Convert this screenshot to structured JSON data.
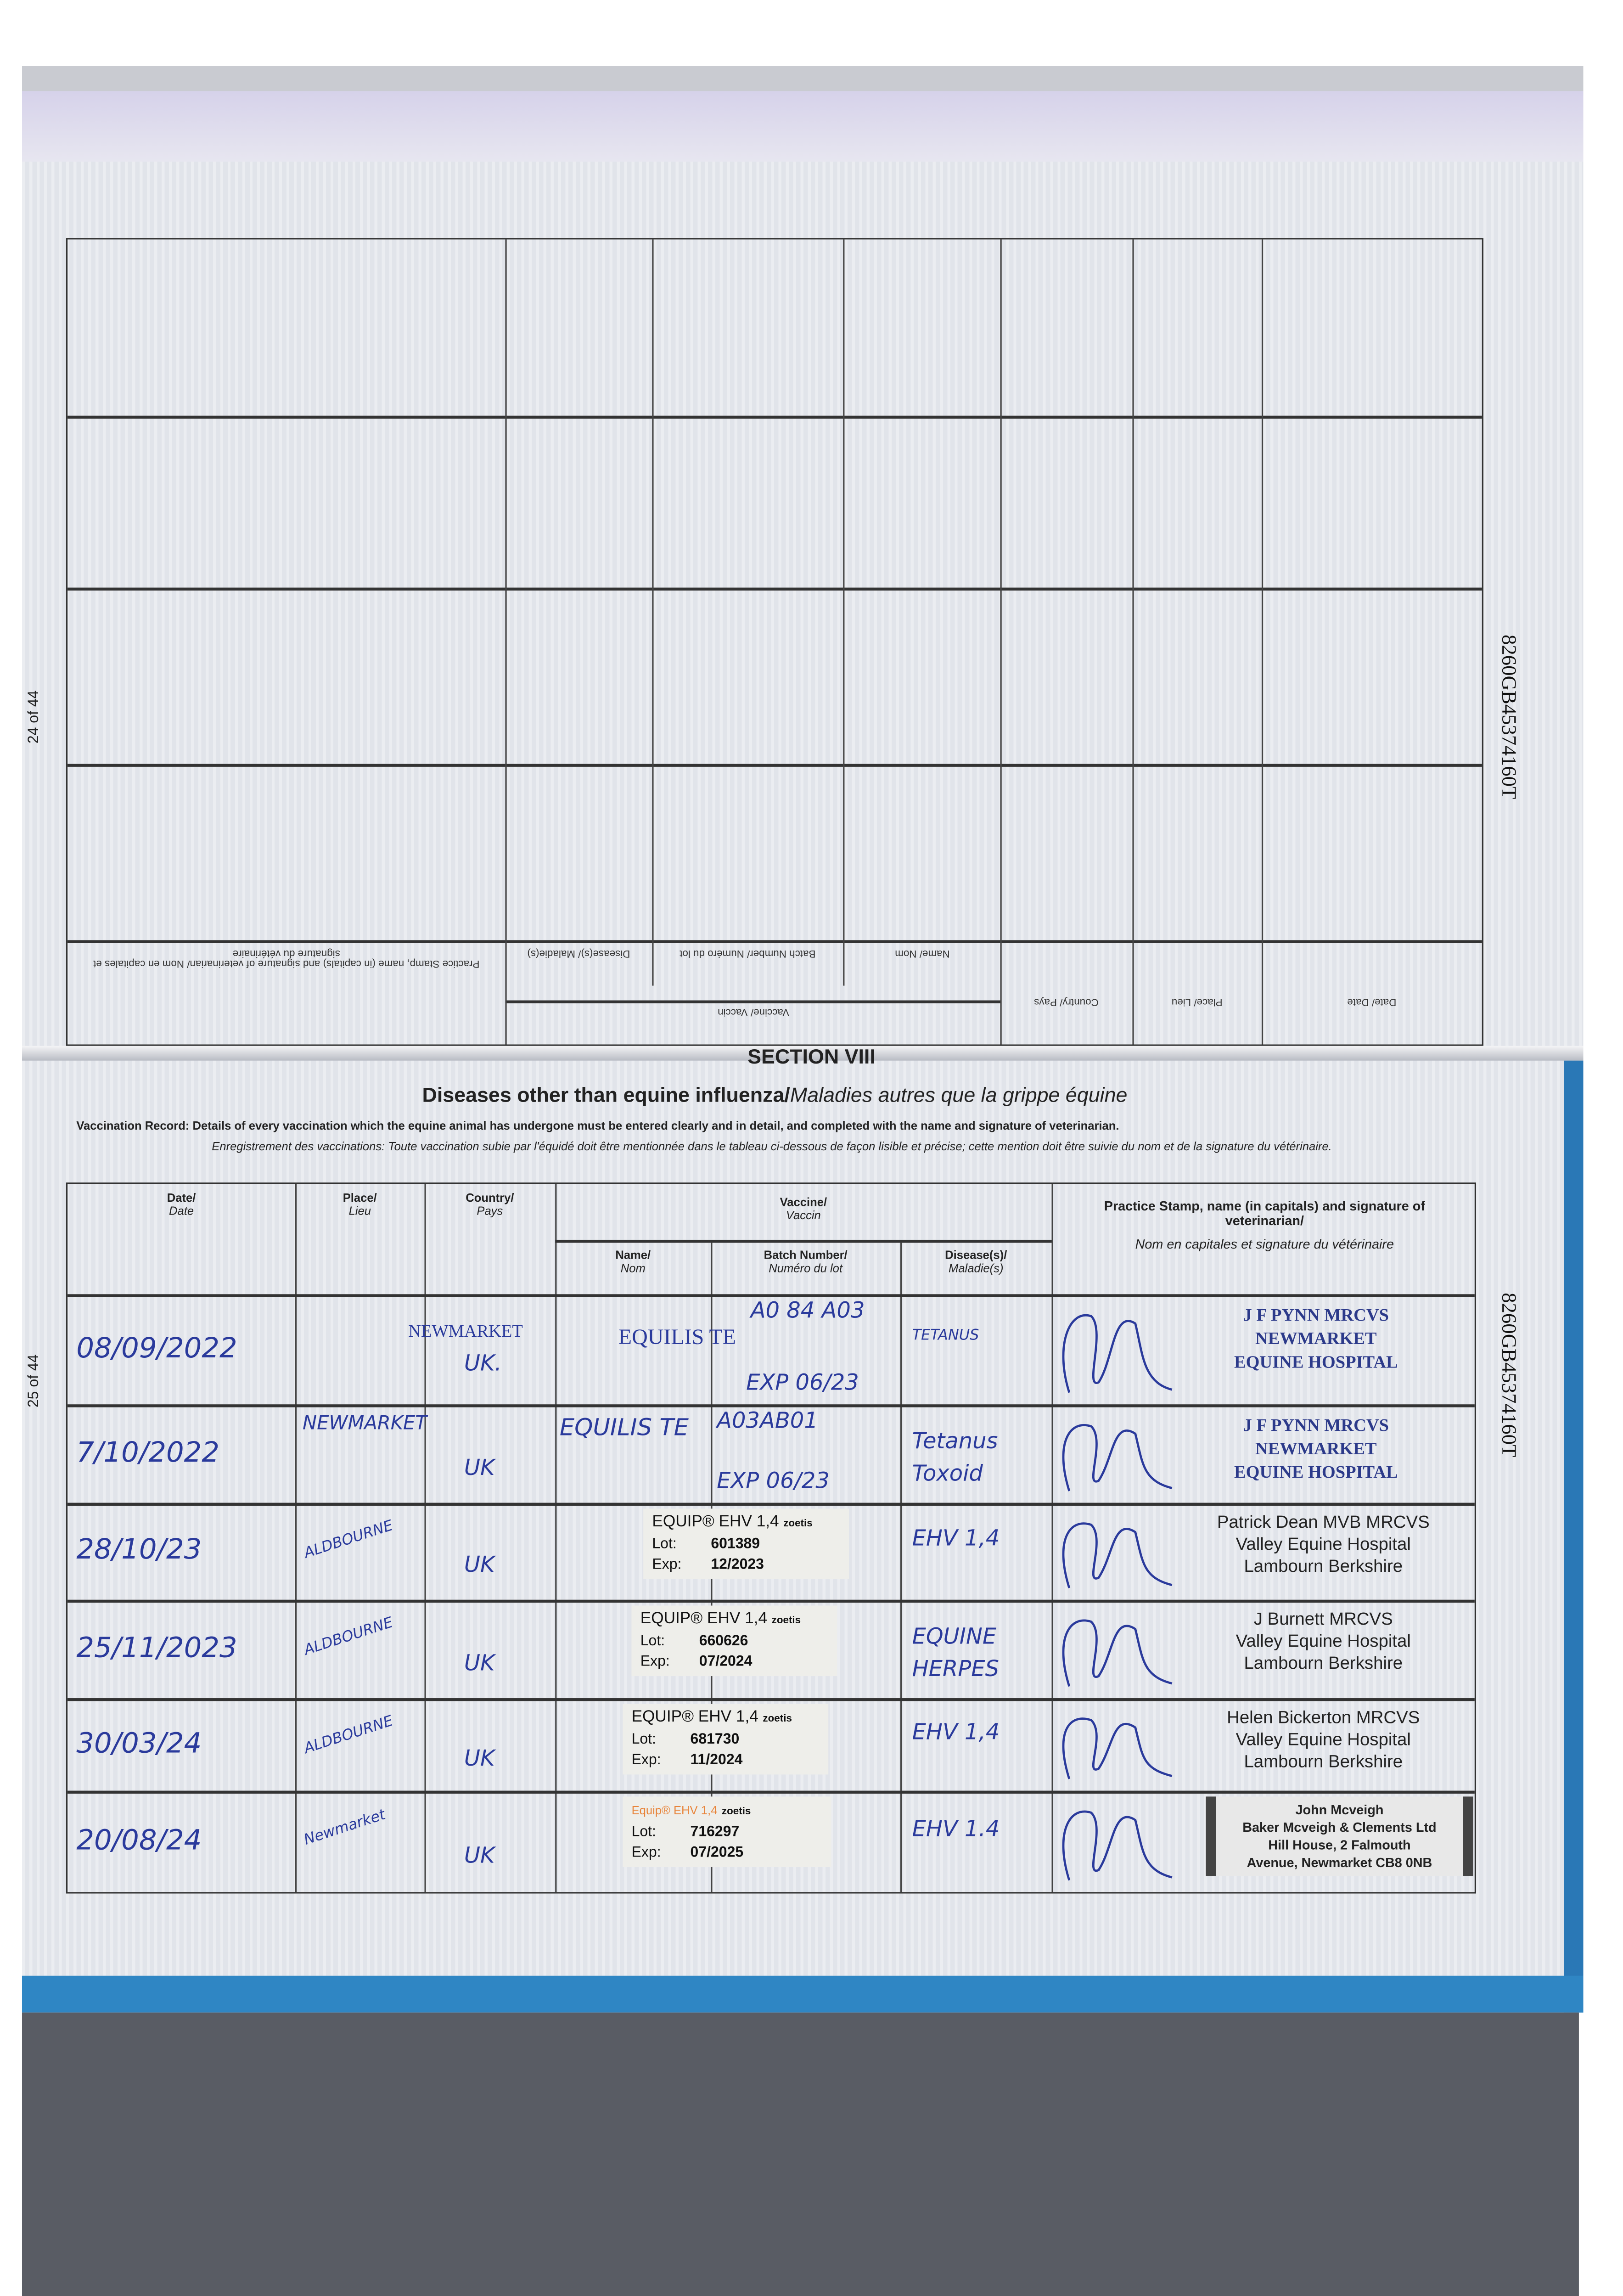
{
  "margins": {
    "left_page_top": "24 of 44",
    "left_page_bottom": "25 of 44",
    "passport_id": "8260GB45374160T"
  },
  "upper_page_headers": {
    "date": "Date/ Date",
    "place": "Place/ Lieu",
    "country": "Country/ Pays",
    "vaccine": "Vaccine/ Vaccin",
    "name": "Name/ Nom",
    "batch": "Batch Number/ Numéro du lot",
    "disease": "Disease(s)/ Maladie(s)",
    "stamp": "Practice Stamp, name (in capitals) and signature of veterinarian/ Nom en capitales et signature du vétérinaire"
  },
  "section": {
    "number": "SECTION VIII",
    "title": "Diseases other than equine influenza/",
    "title_fr": "Maladies autres que la grippe équine",
    "instructions_en": "Vaccination Record: Details of every vaccination which the equine animal has undergone must be entered clearly and in detail, and completed with the name and signature of veterinarian.",
    "instructions_fr": "Enregistrement des vaccinations: Toute vaccination subie par l'équidé doit être mentionnée dans le tableau ci-dessous de façon lisible et précise; cette mention doit être suivie du nom et de la signature du vétérinaire."
  },
  "table_headers": {
    "date": "Date/",
    "date_fr": "Date",
    "place": "Place/",
    "place_fr": "Lieu",
    "country": "Country/",
    "country_fr": "Pays",
    "vaccine": "Vaccine/",
    "vaccine_fr": "Vaccin",
    "name": "Name/",
    "name_fr": "Nom",
    "batch": "Batch Number/",
    "batch_fr": "Numéro du lot",
    "disease": "Disease(s)/",
    "disease_fr": "Maladie(s)",
    "stamp": "Practice Stamp, name (in capitals) and signature of veterinarian/",
    "stamp_fr": "Nom en capitales et signature du vétérinaire"
  },
  "rows": [
    {
      "date": "08/09/2022",
      "place": "NEWMARKET",
      "country": "UK.",
      "name": "EQUILIS TE",
      "batch": "A0 84 A03",
      "batch_exp": "EXP 06/23",
      "disease": "TETANUS",
      "stamp_type": "serif",
      "stamp": [
        "J F PYNN MRCVS",
        "NEWMARKET",
        "EQUINE HOSPITAL"
      ]
    },
    {
      "date": "7/10/2022",
      "place": "NEWMARKET",
      "country": "UK",
      "name": "EQUILIS TE",
      "batch": "A03AB01",
      "batch_exp": "EXP 06/23",
      "disease": "Tetanus Toxoid",
      "stamp_type": "serif",
      "stamp": [
        "J F PYNN MRCVS",
        "NEWMARKET",
        "EQUINE HOSPITAL"
      ]
    },
    {
      "date": "28/10/23",
      "place": "ALDBOURNE",
      "country": "UK",
      "label": {
        "product": "EQUIP® EHV 1,4",
        "maker": "zoetis",
        "lot_label": "Lot:",
        "lot": "601389",
        "exp_label": "Exp:",
        "exp": "12/2023"
      },
      "disease": "EHV 1,4",
      "stamp_type": "sans",
      "stamp": [
        "Patrick Dean MVB MRCVS",
        "Valley Equine Hospital",
        "Lambourn Berkshire"
      ]
    },
    {
      "date": "25/11/2023",
      "place": "ALDBOURNE",
      "country": "UK",
      "label": {
        "product": "EQUIP® EHV 1,4",
        "maker": "zoetis",
        "lot_label": "Lot:",
        "lot": "660626",
        "exp_label": "Exp:",
        "exp": "07/2024"
      },
      "disease": "EQUINE HERPES",
      "stamp_type": "sans",
      "stamp": [
        "J Burnett MRCVS",
        "Valley Equine Hospital",
        "Lambourn Berkshire"
      ]
    },
    {
      "date": "30/03/24",
      "place": "ALDBOURNE",
      "country": "UK",
      "label": {
        "product": "EQUIP® EHV 1,4",
        "maker": "zoetis",
        "lot_label": "Lot:",
        "lot": "681730",
        "exp_label": "Exp:",
        "exp": "11/2024"
      },
      "disease": "EHV 1,4",
      "stamp_type": "sans",
      "stamp": [
        "Helen Bickerton MRCVS",
        "Valley Equine Hospital",
        "Lambourn Berkshire"
      ]
    },
    {
      "date": "20/08/24",
      "place": "Newmarket",
      "country": "UK",
      "label": {
        "product": "Equip® EHV 1,4",
        "maker": "zoetis",
        "lot_label": "Lot:",
        "lot": "716297",
        "exp_label": "Exp:",
        "exp": "07/2025",
        "product_color": "#e8843a"
      },
      "disease": "EHV 1.4",
      "stamp_type": "box",
      "stamp": [
        "John Mcveigh",
        "Baker Mcveigh & Clements Ltd",
        "Hill House, 2 Falmouth",
        "Avenue, Newmarket CB8 0NB"
      ]
    }
  ],
  "colors": {
    "ink": "#2a3a9c",
    "cover_blue": "#2f86c4",
    "paper": "#e1e4ea"
  }
}
